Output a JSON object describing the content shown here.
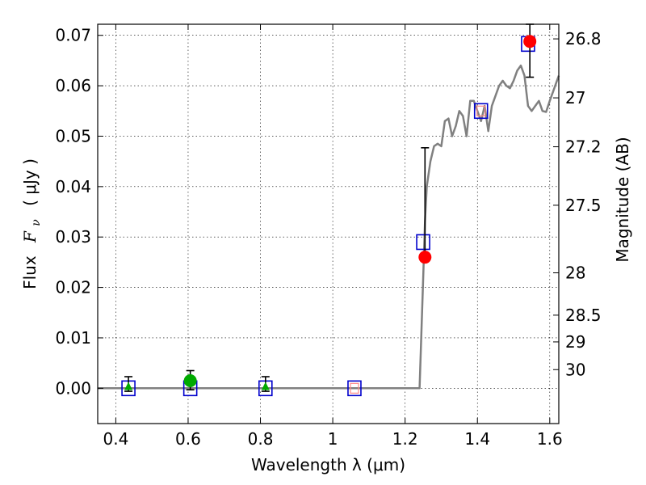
{
  "chart_data": {
    "type": "scatter",
    "xlabel": "Wavelength  λ (μm)",
    "ylabel_prefix": "Flux",
    "ylabel_symbol": "F",
    "ylabel_subscript": "ν",
    "ylabel_unit": "( μJy )",
    "y2label": "Magnitude (AB)",
    "xlim": [
      0.35,
      1.625
    ],
    "ylim": [
      -0.007,
      0.0722
    ],
    "grid": true,
    "x_ticks": [
      {
        "value": 0.4,
        "label": "0.4"
      },
      {
        "value": 0.6,
        "label": "0.6"
      },
      {
        "value": 0.8,
        "label": "0.8"
      },
      {
        "value": 1.0,
        "label": "1"
      },
      {
        "value": 1.2,
        "label": "1.2"
      },
      {
        "value": 1.4,
        "label": "1.4"
      },
      {
        "value": 1.6,
        "label": "1.6"
      }
    ],
    "y_ticks": [
      {
        "value": 0.0,
        "label": "0.00"
      },
      {
        "value": 0.01,
        "label": "0.01"
      },
      {
        "value": 0.02,
        "label": "0.02"
      },
      {
        "value": 0.03,
        "label": "0.03"
      },
      {
        "value": 0.04,
        "label": "0.04"
      },
      {
        "value": 0.05,
        "label": "0.05"
      },
      {
        "value": 0.06,
        "label": "0.06"
      },
      {
        "value": 0.07,
        "label": "0.07"
      }
    ],
    "y2_ticks": [
      {
        "flux": 0.0693,
        "label": "26.8"
      },
      {
        "flux": 0.0576,
        "label": "27"
      },
      {
        "flux": 0.0479,
        "label": "27.2"
      },
      {
        "flux": 0.0363,
        "label": "27.5"
      },
      {
        "flux": 0.0229,
        "label": "28"
      },
      {
        "flux": 0.0145,
        "label": "28.5"
      },
      {
        "flux": 0.0092,
        "label": "29"
      },
      {
        "flux": 0.0037,
        "label": "30"
      }
    ],
    "model_curve": {
      "color": "#808080",
      "x": [
        0.35,
        1.24,
        1.25,
        1.255,
        1.26,
        1.27,
        1.28,
        1.29,
        1.3,
        1.31,
        1.32,
        1.33,
        1.34,
        1.35,
        1.36,
        1.37,
        1.38,
        1.39,
        1.4,
        1.41,
        1.42,
        1.43,
        1.44,
        1.45,
        1.46,
        1.47,
        1.48,
        1.49,
        1.5,
        1.51,
        1.52,
        1.53,
        1.54,
        1.55,
        1.56,
        1.57,
        1.58,
        1.59,
        1.6,
        1.61,
        1.625
      ],
      "y": [
        0.0,
        0.0,
        0.022,
        0.033,
        0.04,
        0.045,
        0.048,
        0.0485,
        0.048,
        0.053,
        0.0535,
        0.05,
        0.052,
        0.055,
        0.054,
        0.05,
        0.057,
        0.057,
        0.055,
        0.053,
        0.056,
        0.051,
        0.056,
        0.058,
        0.06,
        0.061,
        0.06,
        0.0595,
        0.061,
        0.063,
        0.064,
        0.062,
        0.056,
        0.055,
        0.056,
        0.057,
        0.055,
        0.0548,
        0.057,
        0.059,
        0.062
      ]
    },
    "model_band_points": {
      "color": "#0000cc",
      "x": [
        0.435,
        0.606,
        0.814,
        1.06,
        1.25,
        1.41,
        1.54
      ],
      "y": [
        0.0,
        0.0,
        0.0,
        0.0,
        0.029,
        0.055,
        0.0683
      ]
    },
    "upper_limit_boxes": {
      "color": "#ff8888",
      "x": [
        1.06,
        1.41
      ],
      "y": [
        0.0,
        0.055
      ]
    },
    "observed_detections": {
      "color": "#ff0000",
      "x": [
        1.255,
        1.545
      ],
      "y": [
        0.026,
        0.0688
      ],
      "err_low": [
        0.0254,
        0.0617
      ],
      "err_high": [
        0.0477,
        0.0722
      ]
    },
    "observed_green_circle": {
      "color": "#00aa00",
      "x": [
        0.606
      ],
      "y": [
        0.0015
      ],
      "err_low": [
        -0.0003
      ],
      "err_high": [
        0.0035
      ]
    },
    "observed_green_triangles": {
      "color": "#00aa00",
      "x": [
        0.435,
        0.814
      ],
      "y": [
        0.0003,
        0.0003
      ],
      "err_low": [
        -0.0006,
        -0.0006
      ],
      "err_high": [
        0.0023,
        0.0023
      ]
    }
  }
}
